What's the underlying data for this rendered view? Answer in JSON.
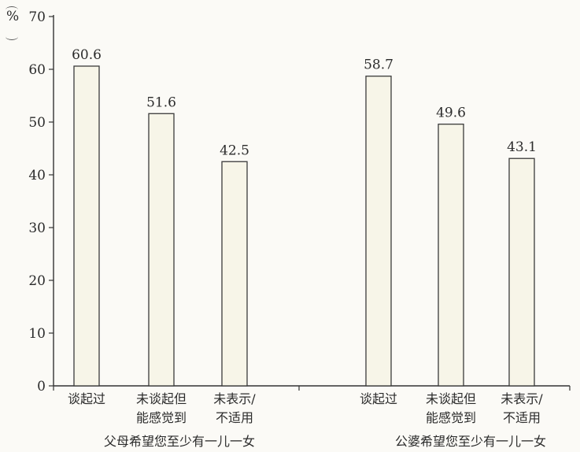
{
  "chart_data": {
    "type": "bar",
    "ylabel": "%",
    "ylim": [
      0,
      70
    ],
    "yticks": [
      0,
      10,
      20,
      30,
      40,
      50,
      60,
      70
    ],
    "groups": [
      {
        "label": "父母希望您至少有一儿一女",
        "categories": [
          "谈起过",
          "未谈起但\n能感觉到",
          "未表示/\n不适用"
        ],
        "values": [
          60.6,
          51.6,
          42.5
        ],
        "value_labels": [
          "60.6",
          "51.6",
          "42.5"
        ]
      },
      {
        "label": "公婆希望您至少有一儿一女",
        "categories": [
          "谈起过",
          "未谈起但\n能感觉到",
          "未表示/\n不适用"
        ],
        "values": [
          58.7,
          49.6,
          43.1
        ],
        "value_labels": [
          "58.7",
          "49.6",
          "43.1"
        ]
      }
    ],
    "colors": {
      "bar_fill": "#f7f5e8",
      "bar_stroke": "#3a3a3a",
      "axis": "#333333"
    },
    "grid": false,
    "legend": "none"
  }
}
